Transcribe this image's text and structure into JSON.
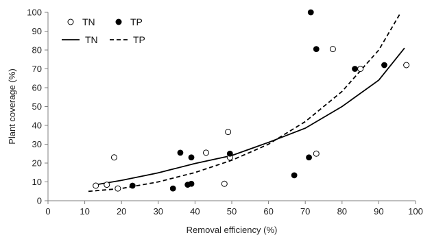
{
  "chart_data": {
    "type": "scatter",
    "xlabel": "Removal efficiency (%)",
    "ylabel": "Plant coverage (%)",
    "xlim": [
      0,
      100
    ],
    "ylim": [
      0,
      100
    ],
    "xticks": [
      0,
      10,
      20,
      30,
      40,
      50,
      60,
      70,
      80,
      90,
      100
    ],
    "yticks": [
      0,
      10,
      20,
      30,
      40,
      50,
      60,
      70,
      80,
      90,
      100
    ],
    "grid": false,
    "legend_position": "top-left",
    "series": [
      {
        "name": "TN",
        "kind": "points",
        "marker": "open-circle",
        "color": "#000000",
        "points": [
          [
            13,
            8
          ],
          [
            16,
            8.5
          ],
          [
            18,
            23
          ],
          [
            19,
            6.5
          ],
          [
            43,
            25.5
          ],
          [
            48,
            9
          ],
          [
            49,
            36.5
          ],
          [
            49.5,
            23
          ],
          [
            73,
            25
          ],
          [
            77.5,
            80.5
          ],
          [
            85,
            70
          ],
          [
            97.5,
            72
          ]
        ]
      },
      {
        "name": "TP",
        "kind": "points",
        "marker": "filled-circle",
        "color": "#000000",
        "points": [
          [
            23,
            8
          ],
          [
            34,
            6.5
          ],
          [
            36,
            25.5
          ],
          [
            38,
            8.5
          ],
          [
            39,
            23
          ],
          [
            39,
            9
          ],
          [
            49.5,
            25
          ],
          [
            67,
            13.5
          ],
          [
            71,
            23
          ],
          [
            71.5,
            100
          ],
          [
            73,
            80.5
          ],
          [
            83.5,
            70
          ],
          [
            91.5,
            72
          ]
        ]
      },
      {
        "name": "TN",
        "kind": "fit-line",
        "style": "solid",
        "color": "#000000",
        "points": [
          [
            13,
            8.5
          ],
          [
            20,
            10.8
          ],
          [
            30,
            14.8
          ],
          [
            40,
            19.8
          ],
          [
            50,
            24
          ],
          [
            60,
            31
          ],
          [
            70,
            38.5
          ],
          [
            80,
            50
          ],
          [
            90,
            64
          ],
          [
            97,
            81
          ]
        ]
      },
      {
        "name": "TP",
        "kind": "fit-line",
        "style": "dashed",
        "color": "#000000",
        "points": [
          [
            11,
            5
          ],
          [
            20,
            6.5
          ],
          [
            30,
            10
          ],
          [
            40,
            15
          ],
          [
            50,
            21.5
          ],
          [
            60,
            30
          ],
          [
            70,
            42
          ],
          [
            80,
            58
          ],
          [
            90,
            80
          ],
          [
            96,
            100
          ]
        ]
      }
    ]
  }
}
